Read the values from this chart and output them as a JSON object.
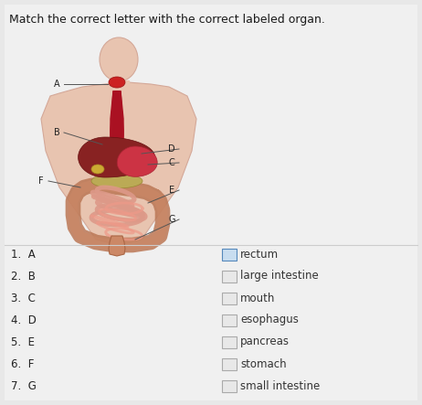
{
  "title": "Match the correct letter with the correct labeled organ.",
  "title_fontsize": 9.0,
  "title_color": "#1a1a1a",
  "bg_color": "#e8e8e8",
  "left_labels": [
    "1.  A",
    "2.  B",
    "3.  C",
    "4.  D",
    "5.  E",
    "6.  F",
    "7.  G"
  ],
  "right_labels": [
    "rectum",
    "large intestine",
    "mouth",
    "esophagus",
    "pancreas",
    "stomach",
    "small intestine"
  ],
  "label_fontsize": 8.5,
  "box_color_first": "#c8ddf0",
  "box_edge_first": "#5588bb",
  "box_color_rest": "#e8e8e8",
  "box_edge_rest": "#aaaaaa",
  "body_skin": "#e8c4b0",
  "body_edge": "#d4a898",
  "mouth_color": "#cc2222",
  "esoph_color": "#aa1122",
  "liver_color": "#882222",
  "liver_edge": "#661111",
  "gallbladder_color": "#ccaa44",
  "stomach_color": "#cc3344",
  "pancreas_color": "#bbaa55",
  "small_int_color": "#dd9988",
  "large_int_color": "#bb7755",
  "rectum_color": "#cc8866",
  "letter_fontsize": 7.0,
  "letter_color": "#222222",
  "line_color": "#555555"
}
